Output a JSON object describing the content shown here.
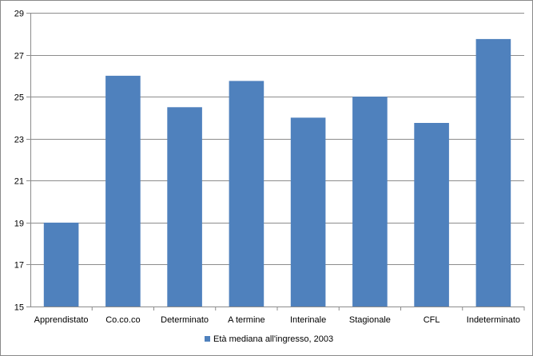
{
  "chart_data": {
    "type": "bar",
    "title": "",
    "xlabel": "",
    "ylabel": "",
    "categories": [
      "Apprendistato",
      "Co.co.co",
      "Determinato",
      "A termine",
      "Interinale",
      "Stagionale",
      "CFL",
      "Indeterminato"
    ],
    "series": [
      {
        "name": "Età mediana  all'ingresso, 2003",
        "values": [
          19,
          26,
          24.5,
          25.75,
          24,
          25,
          23.75,
          27.75
        ],
        "color": "#4f81bd"
      }
    ],
    "ylim": [
      15,
      29
    ],
    "yticks": [
      15,
      17,
      19,
      21,
      23,
      25,
      27,
      29
    ],
    "grid": true,
    "legend_position": "bottom"
  }
}
